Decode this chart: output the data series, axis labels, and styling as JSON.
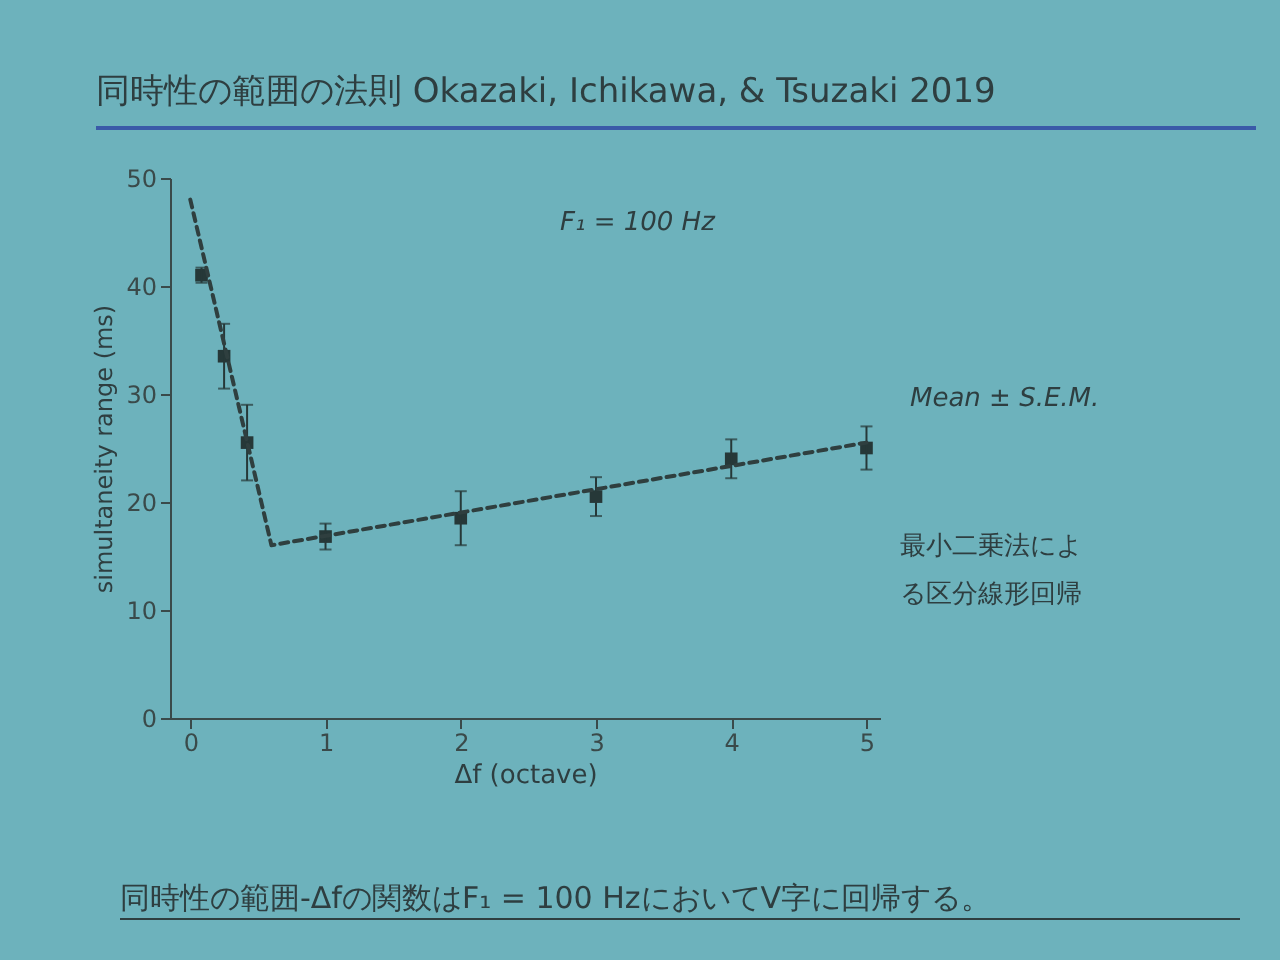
{
  "chart_data": {
    "type": "scatter",
    "title": "同時性の範囲の法則 Okazaki, Ichikawa, & Tsuzaki 2019",
    "xlabel": "Δf (octave)",
    "ylabel": "simultaneity range (ms)",
    "annotations": [
      "F₁ = 100 Hz",
      "Mean ± S.E.M.",
      "最小二乗法による区分線形回帰",
      "同時性の範囲-Δfの関数はF₁ = 100 HzにおいてV字に回帰する。"
    ],
    "xlim": [
      -0.15,
      5.1
    ],
    "ylim": [
      0,
      50
    ],
    "xticks": [
      0,
      1,
      2,
      3,
      4,
      5
    ],
    "yticks": [
      0,
      10,
      20,
      30,
      40,
      50
    ],
    "grid": false,
    "series": [
      {
        "marker": "square",
        "color": "#263838",
        "x": [
          0.083,
          0.25,
          0.42,
          1,
          2,
          3,
          4,
          5
        ],
        "values": [
          41,
          33.5,
          25.5,
          16.8,
          18.5,
          20.5,
          24,
          25
        ],
        "errors": [
          0.7,
          3,
          3.5,
          1.2,
          2.5,
          1.8,
          1.8,
          2
        ]
      },
      {
        "type": "line",
        "color": "#2f3f3f",
        "x": [
          0,
          0.6,
          5
        ],
        "values": [
          48,
          16,
          25.5
        ],
        "line_style": "dashed"
      }
    ]
  }
}
